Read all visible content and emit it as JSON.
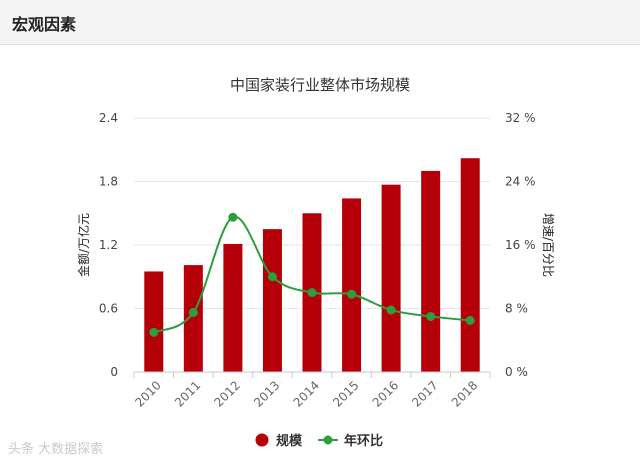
{
  "header": {
    "title": "宏观因素"
  },
  "watermark": "头条 大数据探索",
  "chart_data": {
    "type": "bar",
    "title": "中国家装行业整体市场规模",
    "categories": [
      "2010",
      "2011",
      "2012",
      "2013",
      "2014",
      "2015",
      "2016",
      "2017",
      "2018"
    ],
    "series": [
      {
        "name": "规模",
        "type": "bar",
        "axis": "left",
        "color": "#b5000a",
        "values": [
          0.95,
          1.01,
          1.21,
          1.35,
          1.5,
          1.64,
          1.77,
          1.9,
          2.02
        ]
      },
      {
        "name": "年环比",
        "type": "line",
        "axis": "right",
        "color": "#2e9d3c",
        "values": [
          5.0,
          7.5,
          19.5,
          12.0,
          10.0,
          9.8,
          7.8,
          7.0,
          6.5
        ]
      }
    ],
    "ylabel": "金额/万亿元",
    "y2label": "增速/百分比",
    "ylim": [
      0,
      2.4
    ],
    "y2lim": [
      0,
      32
    ],
    "yticks": [
      "0",
      "0.6",
      "1.2",
      "1.8",
      "2.4"
    ],
    "y2ticks": [
      "0 %",
      "8 %",
      "16 %",
      "24 %",
      "32 %"
    ],
    "grid": true,
    "legend_position": "bottom"
  }
}
